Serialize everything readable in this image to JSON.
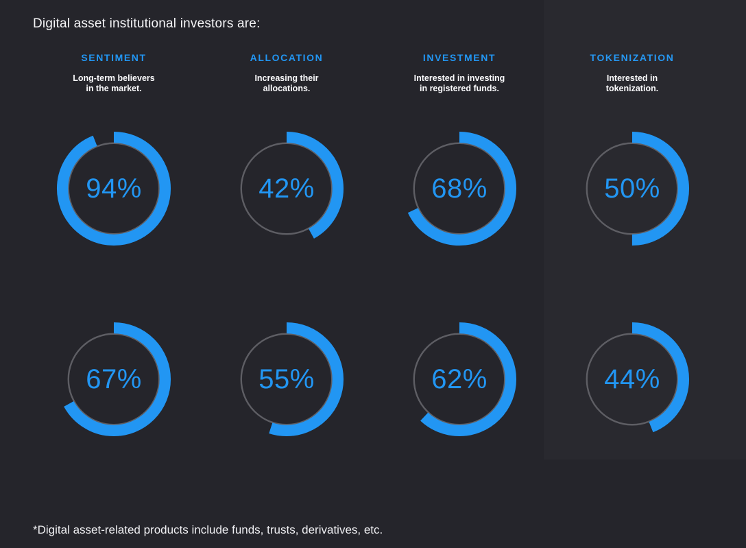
{
  "page": {
    "title": "Digital asset institutional investors are:",
    "footnote": "*Digital asset-related products include funds, trusts, derivatives, etc."
  },
  "colors": {
    "background": "#25252B",
    "accent": "#2296F3",
    "ring_track": "#5E5E64",
    "text": "#FFFFFF"
  },
  "columns": [
    {
      "header": "SENTIMENT",
      "description": "Long-term believers\nin the market."
    },
    {
      "header": "ALLOCATION",
      "description": "Increasing their\nallocations."
    },
    {
      "header": "INVESTMENT",
      "description": "Interested in investing\nin registered funds."
    },
    {
      "header": "TOKENIZATION",
      "description": "Interested in\ntokenization."
    }
  ],
  "chart_data": {
    "type": "pie",
    "variant": "donut-ring",
    "unit": "%",
    "title": "Digital asset institutional investors are:",
    "categories": [
      "SENTIMENT",
      "ALLOCATION",
      "INVESTMENT",
      "TOKENIZATION"
    ],
    "category_descriptions": [
      "Long-term believers in the market.",
      "Increasing their allocations.",
      "Interested in investing in registered funds.",
      "Interested in tokenization."
    ],
    "series": [
      {
        "name": "row-1",
        "values": [
          94,
          42,
          68,
          50
        ]
      },
      {
        "name": "row-2",
        "values": [
          67,
          55,
          62,
          44
        ]
      }
    ],
    "value_range": [
      0,
      100
    ],
    "legend": "none",
    "arc_start": "top",
    "arc_direction": "clockwise",
    "footnote": "*Digital asset-related products include funds, trusts, derivatives, etc."
  }
}
